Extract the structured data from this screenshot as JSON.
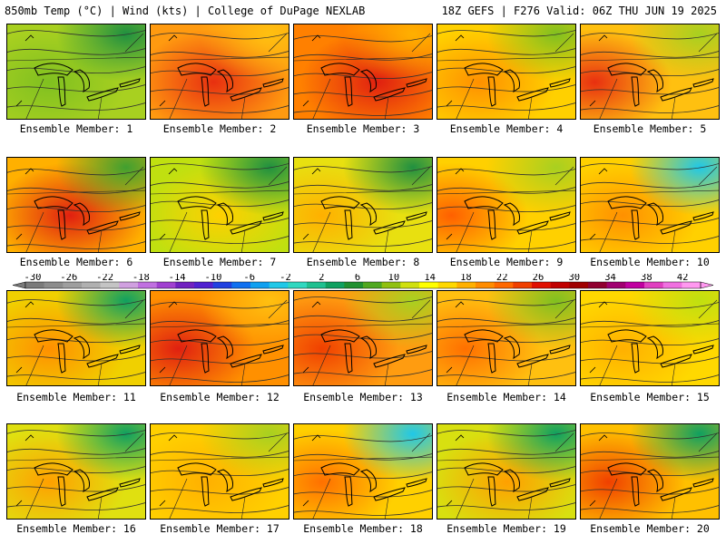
{
  "header": {
    "left": "850mb Temp (°C) | Wind (kts) | College of DuPage NEXLAB",
    "right": "18Z GEFS | F276 Valid: 06Z THU JUN 19 2025"
  },
  "members": [
    {
      "label": "Ensemble Member: 1"
    },
    {
      "label": "Ensemble Member: 2"
    },
    {
      "label": "Ensemble Member: 3"
    },
    {
      "label": "Ensemble Member: 4"
    },
    {
      "label": "Ensemble Member: 5"
    },
    {
      "label": "Ensemble Member: 6"
    },
    {
      "label": "Ensemble Member: 7"
    },
    {
      "label": "Ensemble Member: 8"
    },
    {
      "label": "Ensemble Member: 9"
    },
    {
      "label": "Ensemble Member: 10"
    },
    {
      "label": "Ensemble Member: 11"
    },
    {
      "label": "Ensemble Member: 12"
    },
    {
      "label": "Ensemble Member: 13"
    },
    {
      "label": "Ensemble Member: 14"
    },
    {
      "label": "Ensemble Member: 15"
    },
    {
      "label": "Ensemble Member: 16"
    },
    {
      "label": "Ensemble Member: 17"
    },
    {
      "label": "Ensemble Member: 18"
    },
    {
      "label": "Ensemble Member: 19"
    },
    {
      "label": "Ensemble Member: 20"
    }
  ],
  "colorbar": {
    "tick_labels": [
      "-30",
      "-26",
      "-22",
      "-18",
      "-14",
      "-10",
      "-6",
      "-2",
      "2",
      "6",
      "10",
      "14",
      "18",
      "22",
      "26",
      "30",
      "34",
      "38",
      "42"
    ],
    "colors": [
      "#7a7a7a",
      "#8c8c8c",
      "#9e9e9e",
      "#b0b0b0",
      "#c4c4c4",
      "#d0a0e0",
      "#c070e0",
      "#a040d0",
      "#7020c0",
      "#5020d0",
      "#2040e0",
      "#1070f0",
      "#10a0f0",
      "#20c8e8",
      "#30d8c0",
      "#20c090",
      "#10a060",
      "#209030",
      "#50a820",
      "#90c010",
      "#d0e010",
      "#ffff00",
      "#ffd800",
      "#ffb000",
      "#ff8c00",
      "#ff6800",
      "#f04000",
      "#e01000",
      "#c00000",
      "#a00000",
      "#900030",
      "#a00070",
      "#c000a0",
      "#e040c0",
      "#f070e0",
      "#ff98f0"
    ]
  }
}
